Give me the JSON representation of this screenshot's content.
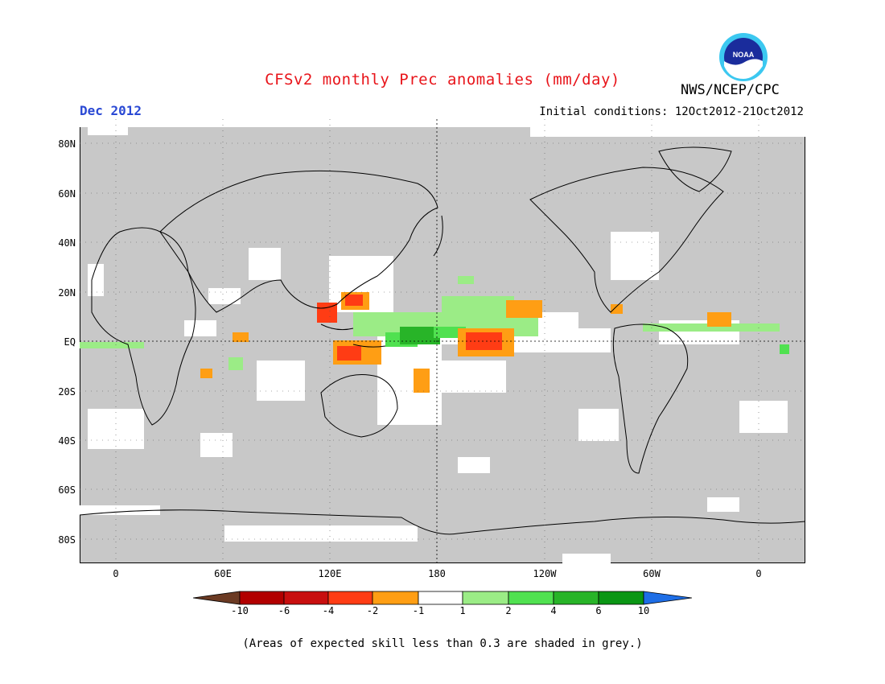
{
  "header": {
    "title": "CFSv2 monthly Prec anomalies (mm/day)",
    "month": "Dec 2012",
    "initial_conditions": "Initial conditions: 12Oct2012-21Oct2012",
    "agency": "NWS/NCEP/CPC",
    "logo_text": "NOAA"
  },
  "map": {
    "lat_labels": [
      "80N",
      "60N",
      "40N",
      "20N",
      "EQ",
      "20S",
      "40S",
      "60S",
      "80S"
    ],
    "lon_labels": [
      "0",
      "60E",
      "120E",
      "180",
      "120W",
      "60W",
      "0"
    ],
    "background_color": "#c8c8c8"
  },
  "legend": {
    "labels": [
      "-10",
      "-6",
      "-4",
      "-2",
      "-1",
      "1",
      "2",
      "4",
      "6",
      "10"
    ],
    "colors": [
      "#6b3a23",
      "#b20000",
      "#c80f0f",
      "#ff3c14",
      "#ff9e14",
      "#ffffff",
      "#9bec86",
      "#50e150",
      "#28b428",
      "#0a9614",
      "#1e6ee6"
    ]
  },
  "footnote": "(Areas of expected skill less than 0.3 are shaded in grey.)"
}
